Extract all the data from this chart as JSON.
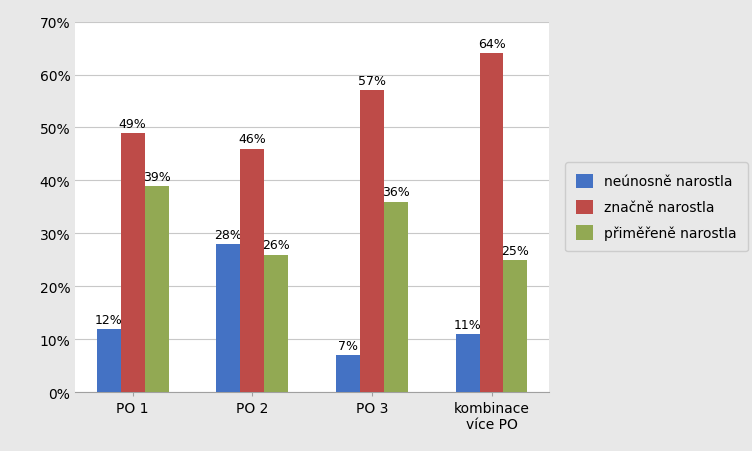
{
  "categories": [
    "PO 1",
    "PO 2",
    "PO 3",
    "kombinace\nvíce PO"
  ],
  "series": [
    {
      "label": "neúnosně narostla",
      "color": "#4472C4",
      "values": [
        0.12,
        0.28,
        0.07,
        0.11
      ]
    },
    {
      "label": "značně narostla",
      "color": "#BE4B48",
      "values": [
        0.49,
        0.46,
        0.57,
        0.64
      ]
    },
    {
      "label": "přiměřeně narostla",
      "color": "#92A953",
      "values": [
        0.39,
        0.26,
        0.36,
        0.25
      ]
    }
  ],
  "ylim": [
    0,
    0.7
  ],
  "yticks": [
    0,
    0.1,
    0.2,
    0.3,
    0.4,
    0.5,
    0.6,
    0.7
  ],
  "bar_width": 0.2,
  "outer_background": "#E8E8E8",
  "plot_background": "#FFFFFF",
  "grid_color": "#C8C8C8",
  "label_fontsize": 9,
  "tick_fontsize": 10,
  "legend_fontsize": 10
}
